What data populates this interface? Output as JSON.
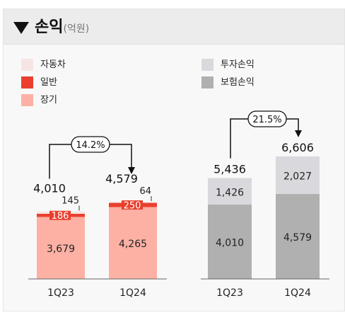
{
  "header": {
    "title": "손익",
    "unit": "(억원)"
  },
  "colors": {
    "auto": "#f5e6e4",
    "general": "#ea3f2d",
    "longterm": "#fcb1a4",
    "investment": "#d9d9dd",
    "insurance": "#b0b0b0"
  },
  "legend_left": [
    {
      "label": "자동차",
      "color": "#f5e6e4"
    },
    {
      "label": "일반",
      "color": "#ea3f2d"
    },
    {
      "label": "장기",
      "color": "#fcb1a4"
    }
  ],
  "legend_right": [
    {
      "label": "투자손익",
      "color": "#d9d9dd"
    },
    {
      "label": "보험손익",
      "color": "#b0b0b0"
    }
  ],
  "chart_data": [
    {
      "type": "bar",
      "stacked": true,
      "categories": [
        "1Q23",
        "1Q24"
      ],
      "series": [
        {
          "name": "장기",
          "values": [
            3679,
            4265
          ],
          "labels": [
            "3,679",
            "4,265"
          ]
        },
        {
          "name": "일반",
          "values": [
            186,
            250
          ],
          "labels": [
            "186",
            "250"
          ]
        },
        {
          "name": "자동차",
          "values": [
            145,
            64
          ],
          "labels": [
            "145",
            "64"
          ]
        }
      ],
      "totals": [
        4010,
        4579
      ],
      "total_labels": [
        "4,010",
        "4,579"
      ],
      "growth_label": "14.2%"
    },
    {
      "type": "bar",
      "stacked": true,
      "categories": [
        "1Q23",
        "1Q24"
      ],
      "series": [
        {
          "name": "보험손익",
          "values": [
            4010,
            4579
          ],
          "labels": [
            "4,010",
            "4,579"
          ]
        },
        {
          "name": "투자손익",
          "values": [
            1426,
            2027
          ],
          "labels": [
            "1,426",
            "2,027"
          ]
        }
      ],
      "totals": [
        5436,
        6606
      ],
      "total_labels": [
        "5,436",
        "6,606"
      ],
      "growth_label": "21.5%"
    }
  ]
}
